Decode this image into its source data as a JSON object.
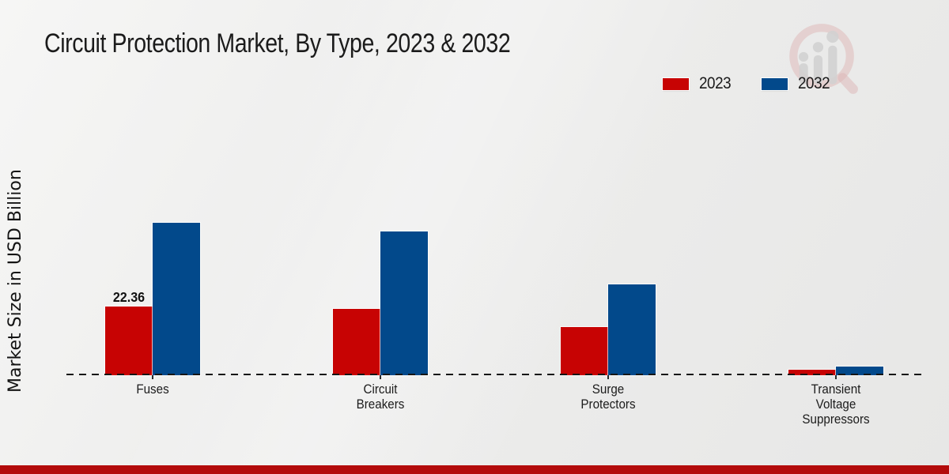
{
  "title": "Circuit Protection Market, By Type, 2023 & 2032",
  "y_axis": {
    "label": "Market Size in USD Billion"
  },
  "legend": {
    "items": [
      {
        "label": "2023",
        "color": "#c70303"
      },
      {
        "label": "2032",
        "color": "#02498b"
      }
    ]
  },
  "watermark": {
    "name": "market-research-magnifier-logo"
  },
  "footer": {
    "bar_color": "#b30b0b"
  },
  "colors": {
    "series_2023": "#c70303",
    "series_2032": "#02498b",
    "background": "#ededec",
    "baseline": "#161616",
    "text": "#1b1b1b"
  },
  "chart_data": {
    "type": "bar",
    "title": "Circuit Protection Market, By Type, 2023 & 2032",
    "xlabel": "",
    "ylabel": "Market Size in USD Billion",
    "categories": [
      "Fuses",
      "Circuit Breakers",
      "Surge Protectors",
      "Transient Voltage Suppressors"
    ],
    "series": [
      {
        "name": "2023",
        "color": "#c70303",
        "values": [
          22.36,
          21.5,
          15.6,
          1.8
        ]
      },
      {
        "name": "2032",
        "color": "#02498b",
        "values": [
          49.6,
          46.8,
          29.6,
          2.8
        ]
      }
    ],
    "data_labels": [
      {
        "series": "2023",
        "category": "Fuses",
        "text": "22.36"
      }
    ],
    "ylim": [
      0,
      55
    ],
    "grid": false,
    "y_axis_ticks_visible": false,
    "baseline_style": "dashed",
    "legend_position": "top-right"
  }
}
